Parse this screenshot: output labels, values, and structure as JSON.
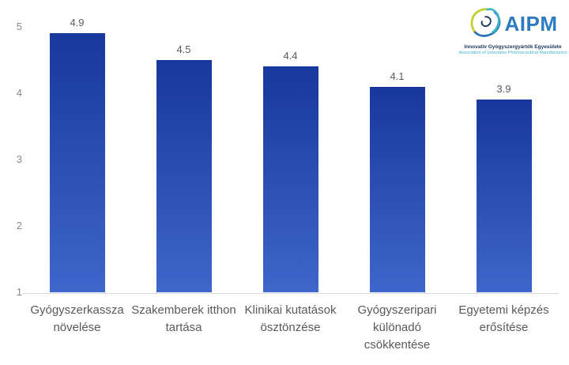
{
  "chart_data": {
    "type": "bar",
    "title": "",
    "xlabel": "",
    "ylabel": "",
    "categories": [
      "Gyógyszerkassza növelése",
      "Szakemberek itthon tartása",
      "Klinikai kutatások ösztönzése",
      "Gyógyszeripari különadó csökkentése",
      "Egyetemi képzés erősítése"
    ],
    "values": [
      4.9,
      4.5,
      4.4,
      4.1,
      3.9
    ],
    "value_labels": [
      "4.9",
      "4.5",
      "4.4",
      "4.1",
      "3.9"
    ],
    "ylim": [
      1,
      5
    ],
    "yticks": [
      1,
      2,
      3,
      4,
      5
    ],
    "grid": false,
    "legend": false,
    "bar_color_top": "#17389d",
    "bar_color_bottom": "#3e66cb",
    "axis_line_color": "#d9d9d9",
    "label_color": "#595959",
    "tick_color": "#8a8a8a"
  },
  "logo": {
    "word": "AIPM",
    "subtitle_hu": "Innovatív Gyógyszergyártók Egyesülete",
    "subtitle_en": "Association of Innovative Pharmaceutical Manufacturers",
    "colors": {
      "word_blue": "#2b7cc0",
      "navy": "#17355e",
      "teal": "#3bb6c9",
      "green": "#c2cf2b",
      "blue": "#2470b3"
    }
  }
}
